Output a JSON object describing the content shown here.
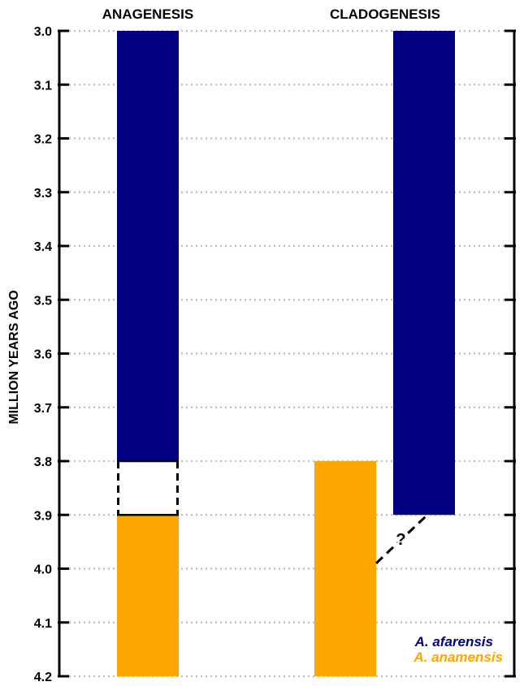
{
  "chart_data": {
    "type": "range-bar",
    "ylabel": "MILLION YEARS AGO",
    "ylim": [
      3.0,
      4.2
    ],
    "y_ticks": [
      "3.0",
      "3.1",
      "3.2",
      "3.3",
      "3.4",
      "3.5",
      "3.6",
      "3.7",
      "3.8",
      "3.9",
      "4.0",
      "4.1",
      "4.2"
    ],
    "grid": "horizontal dotted",
    "panels": [
      {
        "title": "ANAGENESIS",
        "bars": [
          {
            "species": "A. afarensis",
            "from": 3.0,
            "to": 3.8
          },
          {
            "species": "A. anamensis",
            "from": 3.9,
            "to": 4.2
          }
        ],
        "transition": {
          "style": "dashed box",
          "from": 3.8,
          "to": 3.9
        }
      },
      {
        "title": "CLADOGENESIS",
        "bars": [
          {
            "species": "A. anamensis",
            "from": 3.8,
            "to": 4.2
          },
          {
            "species": "A. afarensis",
            "from": 3.0,
            "to": 3.9
          }
        ],
        "transition": {
          "style": "dashed line",
          "label": "?",
          "from_species": "A. anamensis",
          "at": 3.99,
          "to_species": "A. afarensis",
          "to_at": 3.9
        }
      }
    ],
    "legend": [
      {
        "label": "A. afarensis",
        "color": "#000080"
      },
      {
        "label": "A. anamensis",
        "color": "#ffa500"
      }
    ],
    "legend_position": "bottom-right"
  }
}
